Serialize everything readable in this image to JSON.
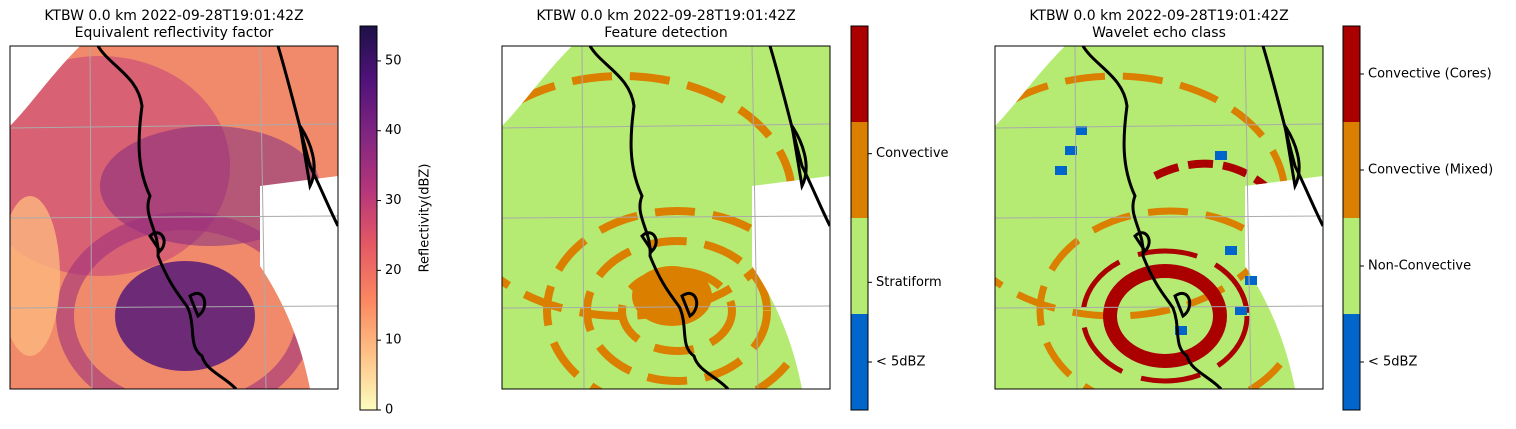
{
  "chart_data": [
    {
      "type": "map",
      "title": "KTBW 0.0 km 2022-09-28T19:01:42Z",
      "subtitle": "Equivalent reflectivity factor",
      "colorbar": {
        "label": "Reflectivity(dBZ)",
        "ylim": [
          0,
          55
        ],
        "yticks": [
          0,
          10,
          20,
          30,
          40,
          50
        ],
        "colormap": [
          "#fcfdbf",
          "#fec287",
          "#fb8761",
          "#e55964",
          "#b5367a",
          "#822681",
          "#51127c",
          "#1d1147"
        ]
      }
    },
    {
      "type": "map",
      "title": "KTBW 0.0 km 2022-09-28T19:01:42Z",
      "subtitle": "Feature detection",
      "colorbar": {
        "ylim": [
          0,
          4
        ],
        "yticks": [
          {
            "value": 0.5,
            "label": "< 5dBZ"
          },
          {
            "value": 1.33,
            "label": "Stratiform"
          },
          {
            "value": 2.67,
            "label": "Convective"
          }
        ],
        "colors": [
          "#0066cc",
          "#b5eb73",
          "#db7f00",
          "#aa0000"
        ]
      }
    },
    {
      "type": "map",
      "title": "KTBW 0.0 km 2022-09-28T19:01:42Z",
      "subtitle": "Wavelet echo class",
      "colorbar": {
        "ylim": [
          0,
          4
        ],
        "yticks": [
          {
            "value": 0.5,
            "label": "< 5dBZ"
          },
          {
            "value": 1.5,
            "label": "Non-Convective"
          },
          {
            "value": 2.5,
            "label": "Convective (Mixed)"
          },
          {
            "value": 3.5,
            "label": "Convective (Cores)"
          }
        ],
        "colors": [
          "#0066cc",
          "#b5eb73",
          "#db7f00",
          "#aa0000"
        ]
      }
    }
  ]
}
